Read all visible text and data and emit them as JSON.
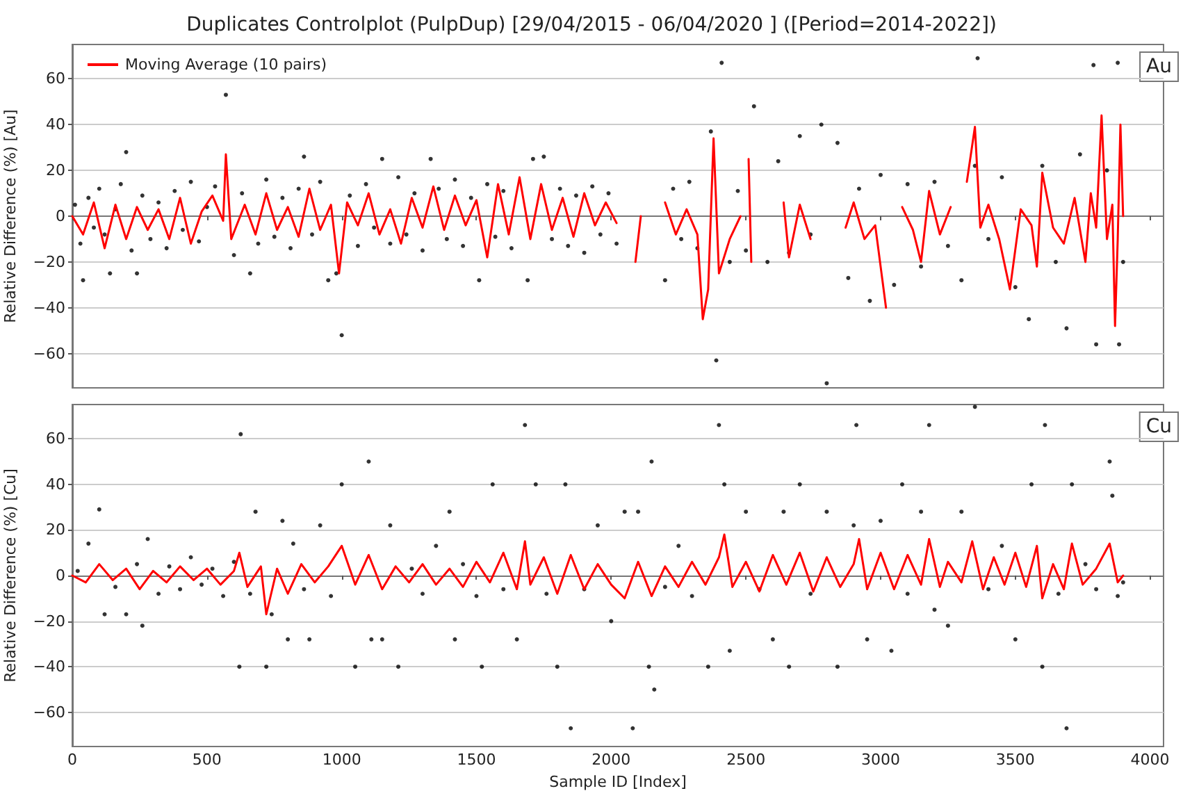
{
  "chart_data": [
    {
      "type": "scatter",
      "title": "Duplicates Controlplot (PulpDup) [29/04/2015 - 06/04/2020 ] ([Period=2014-2022])",
      "ylabel": "Relative Difference (%) [Au]",
      "annotations": [
        "Au"
      ],
      "xlim": [
        0,
        4050
      ],
      "xticks": [
        0,
        500,
        1000,
        1500,
        2000,
        2500,
        3000,
        3500,
        4000
      ],
      "ylim": [
        -75,
        75
      ],
      "yticks": [
        -60,
        -40,
        -20,
        0,
        20,
        40,
        60
      ],
      "grid": "y",
      "legend": "top left",
      "tick_labels": "y",
      "series": [
        {
          "marker": "circle",
          "color": "#000000",
          "x": [
            10,
            30,
            40,
            60,
            80,
            100,
            120,
            140,
            160,
            180,
            200,
            220,
            240,
            260,
            290,
            320,
            350,
            380,
            410,
            440,
            470,
            500,
            530,
            570,
            600,
            630,
            660,
            690,
            720,
            750,
            780,
            810,
            840,
            860,
            890,
            920,
            950,
            980,
            1000,
            1030,
            1060,
            1090,
            1120,
            1150,
            1180,
            1210,
            1240,
            1270,
            1300,
            1330,
            1360,
            1390,
            1420,
            1450,
            1480,
            1510,
            1540,
            1570,
            1600,
            1630,
            1660,
            1690,
            1710,
            1750,
            1780,
            1810,
            1840,
            1870,
            1900,
            1930,
            1960,
            1990,
            2020,
            2200,
            2230,
            2260,
            2290,
            2320,
            2370,
            2390,
            2410,
            2440,
            2470,
            2500,
            2530,
            2580,
            2620,
            2660,
            2700,
            2740,
            2780,
            2800,
            2840,
            2880,
            2920,
            2960,
            3000,
            3050,
            3100,
            3150,
            3200,
            3250,
            3300,
            3350,
            3360,
            3400,
            3450,
            3500,
            3550,
            3600,
            3650,
            3690,
            3740,
            3790,
            3800,
            3840,
            3880,
            3885,
            3900
          ],
          "values": [
            5,
            -12,
            -28,
            8,
            -5,
            12,
            -8,
            -25,
            3,
            14,
            28,
            -15,
            -25,
            9,
            -10,
            6,
            -14,
            11,
            -6,
            15,
            -11,
            4,
            13,
            53,
            -17,
            10,
            -25,
            -12,
            16,
            -9,
            8,
            -14,
            12,
            26,
            -8,
            15,
            -28,
            -25,
            -52,
            9,
            -13,
            14,
            -5,
            25,
            -12,
            17,
            -8,
            10,
            -15,
            25,
            12,
            -10,
            16,
            -13,
            8,
            -28,
            14,
            -9,
            11,
            -14,
            null,
            -28,
            25,
            26,
            -10,
            12,
            -13,
            9,
            -16,
            13,
            -8,
            10,
            -12,
            -28,
            12,
            -10,
            15,
            -14,
            37,
            -63,
            67,
            -20,
            11,
            -15,
            48,
            -20,
            24,
            -16,
            35,
            -8,
            40,
            -73,
            32,
            -27,
            12,
            -37,
            18,
            -30,
            14,
            -22,
            15,
            -13,
            -28,
            22,
            69,
            -10,
            17,
            -31,
            -45,
            22,
            -20,
            -49,
            27,
            66,
            -56,
            20,
            67,
            -56,
            -20
          ]
        },
        {
          "type": "line",
          "name": "Moving Average (10 pairs)",
          "color": "#ff0000",
          "x": [
            0,
            40,
            80,
            120,
            160,
            200,
            240,
            280,
            320,
            360,
            400,
            440,
            480,
            520,
            560,
            570,
            590,
            640,
            680,
            720,
            760,
            800,
            840,
            880,
            920,
            960,
            990,
            1020,
            1060,
            1100,
            1140,
            1180,
            1220,
            1260,
            1300,
            1340,
            1380,
            1420,
            1460,
            1500,
            1540,
            1580,
            1620,
            1660,
            1700,
            1740,
            1780,
            1820,
            1860,
            1900,
            1940,
            1980,
            2020,
            2060,
            2090,
            2110,
            2160,
            2200,
            2240,
            2280,
            2320,
            2340,
            2360,
            2380,
            2400,
            2440,
            2480,
            2500,
            2510,
            2520,
            2540,
            2640,
            2660,
            2700,
            2740,
            2780,
            2870,
            2900,
            2940,
            2980,
            3020,
            3040,
            3080,
            3120,
            3150,
            3180,
            3220,
            3260,
            3300,
            3320,
            3350,
            3370,
            3400,
            3440,
            3480,
            3520,
            3560,
            3580,
            3600,
            3640,
            3680,
            3720,
            3760,
            3780,
            3800,
            3820,
            3840,
            3860,
            3870,
            3880,
            3890,
            3900
          ],
          "values": [
            0,
            -8,
            6,
            -14,
            5,
            -10,
            4,
            -6,
            3,
            -10,
            8,
            -12,
            2,
            9,
            -2,
            27,
            -10,
            5,
            -8,
            10,
            -6,
            4,
            -9,
            12,
            -6,
            5,
            -25,
            6,
            -4,
            10,
            -8,
            3,
            -12,
            8,
            -5,
            13,
            -6,
            9,
            -4,
            7,
            -18,
            14,
            -8,
            17,
            -10,
            14,
            -6,
            8,
            -9,
            10,
            -4,
            6,
            -3,
            null,
            -20,
            0,
            null,
            6,
            -8,
            3,
            -8,
            -45,
            -32,
            34,
            -25,
            -10,
            0,
            null,
            25,
            -20,
            null,
            6,
            -18,
            5,
            -10,
            null,
            -5,
            6,
            -10,
            -4,
            -40,
            null,
            4,
            -6,
            -20,
            11,
            -8,
            4,
            null,
            15,
            39,
            -5,
            5,
            -10,
            -32,
            3,
            -4,
            -22,
            19,
            -5,
            -12,
            8,
            -20,
            10,
            -5,
            44,
            -10,
            5,
            -48,
            -10,
            40,
            0
          ]
        }
      ]
    },
    {
      "type": "scatter",
      "xlabel": "Sample ID [Index]",
      "ylabel": "Relative Difference (%) [Cu]",
      "annotations": [
        "Cu"
      ],
      "xlim": [
        0,
        4050
      ],
      "xticks": [
        0,
        500,
        1000,
        1500,
        2000,
        2500,
        3000,
        3500,
        4000
      ],
      "ylim": [
        -75,
        75
      ],
      "yticks": [
        -60,
        -40,
        -20,
        0,
        20,
        40,
        60
      ],
      "grid": "y",
      "series": [
        {
          "marker": "circle",
          "color": "#000000",
          "x": [
            20,
            60,
            100,
            120,
            160,
            200,
            240,
            260,
            280,
            320,
            360,
            400,
            440,
            480,
            520,
            560,
            600,
            620,
            625,
            660,
            680,
            720,
            740,
            780,
            800,
            820,
            860,
            880,
            920,
            960,
            1000,
            1050,
            1100,
            1110,
            1150,
            1180,
            1210,
            1260,
            1300,
            1350,
            1400,
            1420,
            1450,
            1500,
            1520,
            1560,
            1600,
            1650,
            1680,
            1720,
            1760,
            1800,
            1830,
            1850,
            1900,
            1950,
            2000,
            2050,
            2080,
            2100,
            2140,
            2150,
            2160,
            2200,
            2250,
            2300,
            2360,
            2400,
            2420,
            2440,
            2500,
            2550,
            2600,
            2640,
            2660,
            2700,
            2740,
            2800,
            2840,
            2900,
            2910,
            2950,
            3000,
            3040,
            3080,
            3100,
            3150,
            3180,
            3200,
            3250,
            3300,
            3350,
            3400,
            3450,
            3500,
            3560,
            3600,
            3610,
            3660,
            3690,
            3710,
            3760,
            3800,
            3850,
            3860,
            3880,
            3900
          ],
          "values": [
            2,
            14,
            29,
            -17,
            -5,
            -17,
            5,
            -22,
            16,
            -8,
            4,
            -6,
            8,
            -4,
            3,
            -9,
            6,
            -40,
            62,
            -8,
            28,
            -40,
            -17,
            24,
            -28,
            14,
            -6,
            -28,
            22,
            -9,
            40,
            -40,
            50,
            -28,
            -28,
            22,
            -40,
            3,
            -8,
            13,
            28,
            -28,
            5,
            -9,
            -40,
            40,
            -6,
            -28,
            66,
            40,
            -8,
            -40,
            40,
            -67,
            -6,
            22,
            -20,
            28,
            -67,
            28,
            -40,
            50,
            -50,
            -5,
            13,
            -9,
            -40,
            66,
            40,
            -33,
            28,
            -6,
            -28,
            28,
            -40,
            40,
            -8,
            28,
            -40,
            22,
            66,
            -28,
            24,
            -33,
            40,
            -8,
            28,
            66,
            -15,
            -22,
            28,
            74,
            -6,
            13,
            -28,
            40,
            -40,
            66,
            -8,
            -67,
            40,
            5,
            -6,
            50,
            35,
            -9,
            -3
          ]
        },
        {
          "type": "line",
          "color": "#ff0000",
          "x": [
            0,
            50,
            100,
            150,
            200,
            250,
            300,
            350,
            400,
            450,
            500,
            550,
            600,
            620,
            650,
            700,
            720,
            760,
            800,
            850,
            900,
            950,
            1000,
            1050,
            1100,
            1150,
            1200,
            1250,
            1300,
            1350,
            1400,
            1450,
            1500,
            1550,
            1600,
            1650,
            1680,
            1700,
            1750,
            1800,
            1850,
            1900,
            1950,
            2000,
            2050,
            2100,
            2150,
            2200,
            2250,
            2300,
            2350,
            2400,
            2420,
            2450,
            2500,
            2550,
            2600,
            2650,
            2700,
            2750,
            2800,
            2850,
            2900,
            2920,
            2950,
            3000,
            3050,
            3100,
            3150,
            3180,
            3220,
            3250,
            3300,
            3340,
            3380,
            3420,
            3460,
            3500,
            3540,
            3580,
            3600,
            3640,
            3680,
            3710,
            3750,
            3800,
            3850,
            3880,
            3900
          ],
          "values": [
            0,
            -3,
            5,
            -2,
            3,
            -6,
            2,
            -3,
            4,
            -2,
            3,
            -4,
            2,
            10,
            -5,
            4,
            -17,
            3,
            -8,
            5,
            -3,
            4,
            13,
            -4,
            9,
            -6,
            4,
            -3,
            5,
            -4,
            3,
            -5,
            6,
            -3,
            10,
            -6,
            15,
            -4,
            8,
            -8,
            9,
            -6,
            5,
            -4,
            -10,
            6,
            -9,
            4,
            -5,
            6,
            -4,
            8,
            18,
            -5,
            6,
            -7,
            9,
            -4,
            10,
            -7,
            8,
            -5,
            5,
            16,
            -6,
            10,
            -6,
            9,
            -4,
            16,
            -5,
            6,
            -3,
            15,
            -6,
            8,
            -4,
            10,
            -5,
            13,
            -10,
            5,
            -6,
            14,
            -4,
            3,
            14,
            -3,
            0
          ]
        }
      ]
    }
  ]
}
